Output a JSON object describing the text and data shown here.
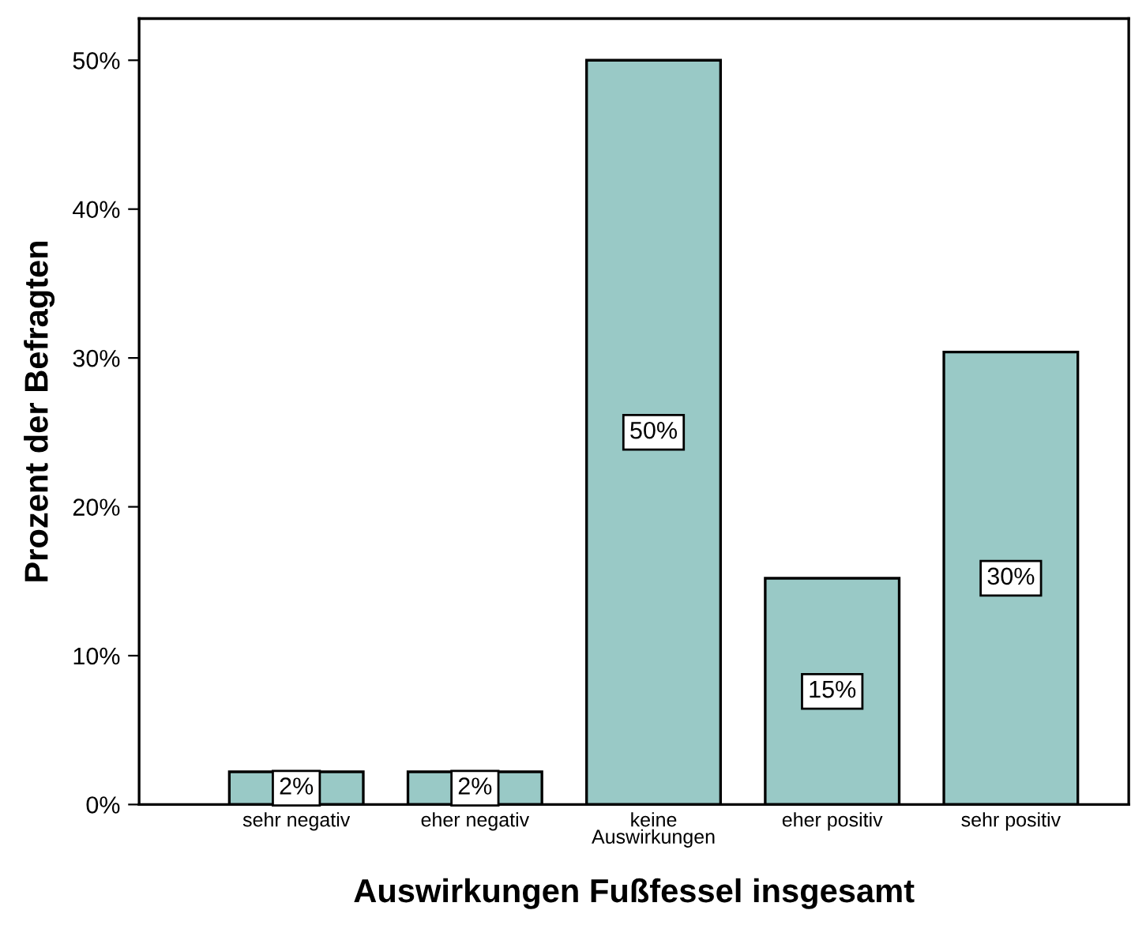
{
  "chart_data": {
    "type": "bar",
    "xlabel": "Auswirkungen Fußfessel insgesamt",
    "ylabel": "Prozent der Befragten",
    "categories": [
      "sehr negativ",
      "eher negativ",
      "keine\nAuswirkungen",
      "eher positiv",
      "sehr positiv"
    ],
    "values": [
      2.2,
      2.2,
      50.0,
      15.2,
      30.4
    ],
    "value_labels": [
      "2%",
      "2%",
      "50%",
      "15%",
      "30%"
    ],
    "color": "#99c9c6",
    "ylim": [
      0,
      52.8
    ],
    "yticks": [
      {
        "value": 0,
        "label": "0%"
      },
      {
        "value": 10,
        "label": "10%"
      },
      {
        "value": 20,
        "label": "20%"
      },
      {
        "value": 30,
        "label": "30%"
      },
      {
        "value": 40,
        "label": "40%"
      },
      {
        "value": 50,
        "label": "50%"
      }
    ],
    "grid": false
  }
}
